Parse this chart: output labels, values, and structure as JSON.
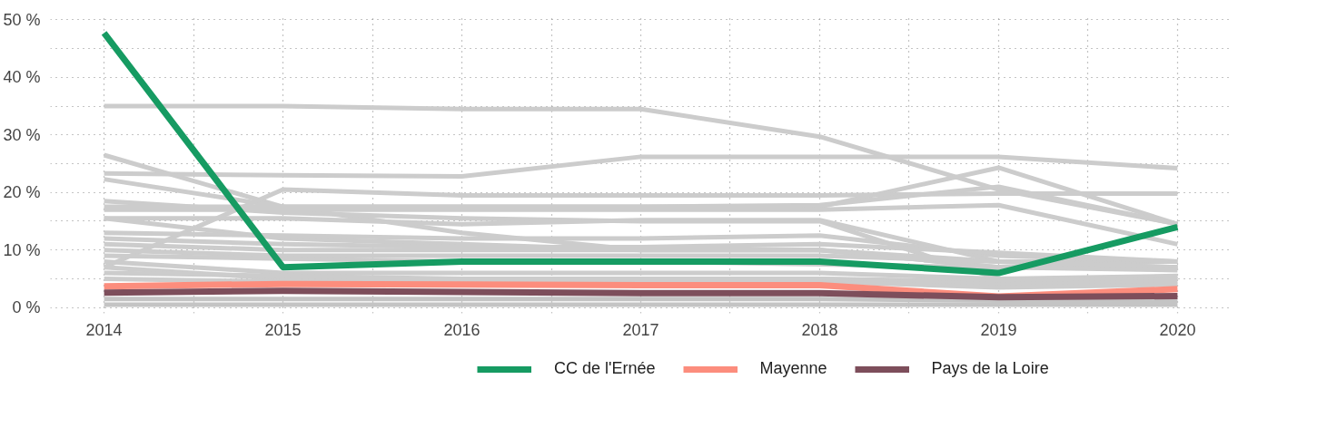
{
  "chart_data": {
    "type": "line",
    "x": [
      2014,
      2015,
      2016,
      2017,
      2018,
      2019,
      2020
    ],
    "xlim": [
      2013.7,
      2020.3
    ],
    "xticks": [
      2014,
      {
        "value": 2014.5,
        "label": null
      },
      2015,
      {
        "value": 2015.5,
        "label": null
      },
      2016,
      {
        "value": 2016.5,
        "label": null
      },
      2017,
      {
        "value": 2017.5,
        "label": null
      },
      2018,
      {
        "value": 2018.5,
        "label": null
      },
      2019,
      {
        "value": 2019.5,
        "label": null
      },
      2020
    ],
    "ylim": [
      -1,
      51
    ],
    "yticks": [
      {
        "value": 0,
        "label": "0 %"
      },
      {
        "value": 5,
        "label": null
      },
      {
        "value": 10,
        "label": "10 %"
      },
      {
        "value": 15,
        "label": null
      },
      {
        "value": 20,
        "label": "20 %"
      },
      {
        "value": 25,
        "label": null
      },
      {
        "value": 30,
        "label": "30 %"
      },
      {
        "value": 35,
        "label": null
      },
      {
        "value": 40,
        "label": "40 %"
      },
      {
        "value": 45,
        "label": null
      },
      {
        "value": 50,
        "label": "50 %"
      }
    ],
    "grid": true,
    "legend": "bottom",
    "line_style": "solid",
    "series": [
      {
        "color": "#cccccc",
        "values": [
          35,
          35,
          34.5,
          34.5,
          29.7,
          20.5,
          14.5
        ]
      },
      {
        "color": "#cccccc",
        "values": [
          23.3,
          23,
          22.8,
          26.2,
          26.2,
          26.2,
          24.2
        ]
      },
      {
        "color": "#cccccc",
        "values": [
          26.5,
          17.5,
          13,
          10,
          10,
          7,
          7
        ]
      },
      {
        "color": "#cccccc",
        "values": [
          22.3,
          17.5,
          17.5,
          17.5,
          17.5,
          24.3,
          14.5
        ]
      },
      {
        "color": "#cccccc",
        "values": [
          7,
          20.5,
          19.5,
          19.5,
          19.5,
          19.8,
          19.8
        ]
      },
      {
        "color": "#cccccc",
        "values": [
          18.5,
          16.5,
          15.5,
          15,
          15,
          5,
          5
        ]
      },
      {
        "color": "#cccccc",
        "values": [
          17.5,
          17.5,
          17.5,
          17.5,
          17.8,
          21,
          14.5
        ]
      },
      {
        "color": "#cccccc",
        "values": [
          17,
          17,
          17,
          17,
          17,
          17.8,
          11
        ]
      },
      {
        "color": "#cccccc",
        "values": [
          15.5,
          15.5,
          14.5,
          15.2,
          15.2,
          8,
          7
        ]
      },
      {
        "color": "#cccccc",
        "values": [
          15.5,
          12,
          11,
          10,
          10,
          8,
          8
        ]
      },
      {
        "color": "#cccccc",
        "values": [
          13,
          12.5,
          12,
          12,
          12.5,
          9,
          8
        ]
      },
      {
        "color": "#cccccc",
        "values": [
          12,
          11,
          10.5,
          10.5,
          11,
          9.5,
          8
        ]
      },
      {
        "color": "#cccccc",
        "values": [
          11,
          10,
          10,
          10,
          10,
          7,
          7
        ]
      },
      {
        "color": "#cccccc",
        "values": [
          10,
          9,
          9,
          9,
          9,
          8,
          7
        ]
      },
      {
        "color": "#cccccc",
        "values": [
          9,
          8.5,
          8,
          8,
          7.5,
          7,
          6.5
        ]
      },
      {
        "color": "#cccccc",
        "values": [
          8,
          6,
          6,
          6,
          6,
          5,
          5.5
        ]
      },
      {
        "color": "#cccccc",
        "values": [
          7,
          5,
          5,
          5,
          5,
          4.5,
          5
        ]
      },
      {
        "color": "#cccccc",
        "values": [
          6,
          5.5,
          5,
          5,
          5,
          4,
          4.5
        ]
      },
      {
        "color": "#cccccc",
        "values": [
          5,
          4.5,
          4.5,
          4.5,
          4.5,
          3.5,
          4
        ]
      },
      {
        "color": "#c4c4c4",
        "values": [
          1.5,
          1.5,
          1.5,
          1.5,
          1.5,
          1.2,
          1.2
        ]
      },
      {
        "color": "#c4c4c4",
        "values": [
          0.5,
          0.5,
          0.5,
          0.5,
          0.5,
          0.5,
          0.5
        ]
      },
      {
        "name": "CC de l'Ernée",
        "color": "#169b62",
        "values": [
          47.7,
          7,
          8,
          8,
          8,
          6,
          14
        ]
      },
      {
        "name": "Mayenne",
        "color": "#fc8d7d",
        "values": [
          3.7,
          4.1,
          4,
          3.9,
          3.9,
          1.9,
          3.2
        ]
      },
      {
        "name": "Pays de la Loire",
        "color": "#7d4e5b",
        "values": [
          2.6,
          2.9,
          2.7,
          2.5,
          2.5,
          1.8,
          2
        ]
      }
    ]
  }
}
